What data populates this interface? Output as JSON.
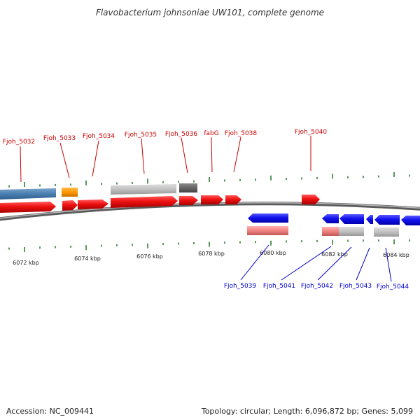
{
  "title": "Flavobacterium johnsoniae UW101, complete genome",
  "footer": {
    "accession": "Accession: NC_009441",
    "summary": "Topology: circular; Length: 6,096,872 bp; Genes: 5,099"
  },
  "colors": {
    "forward_label": "#cc0000",
    "reverse_label": "#0000cc",
    "tick": "#2e7d32",
    "backbone": "#7f7f7f"
  },
  "scale_labels": [
    "6072 kbp",
    "6074 kbp",
    "6076 kbp",
    "6078 kbp",
    "6080 kbp",
    "6082 kbp",
    "6084 kbp"
  ],
  "top_labels": [
    "Fjoh_5032",
    "Fjoh_5033",
    "Fjoh_5034",
    "Fjoh_5035",
    "Fjoh_5036",
    "fabG",
    "Fjoh_5038",
    "Fjoh_5040"
  ],
  "bottom_labels": [
    "Fjoh_5039",
    "Fjoh_5041",
    "Fjoh_5042",
    "Fjoh_5043",
    "Fjoh_5044"
  ]
}
